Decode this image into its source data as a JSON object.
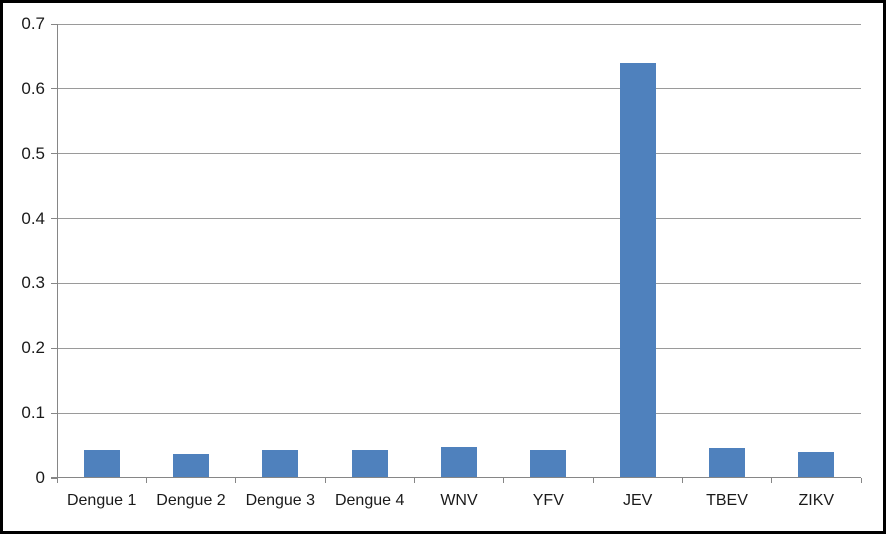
{
  "chart_data": {
    "type": "bar",
    "title": "",
    "categories": [
      "Dengue 1",
      "Dengue 2",
      "Dengue 3",
      "Dengue 4",
      "WNV",
      "YFV",
      "JEV",
      "TBEV",
      "ZIKV"
    ],
    "values": [
      0.042,
      0.036,
      0.042,
      0.042,
      0.046,
      0.041,
      0.638,
      0.045,
      0.038
    ],
    "xlabel": "",
    "ylabel": "",
    "ylim": [
      0,
      0.7
    ],
    "ytick_interval": 0.1,
    "ytick_labels": [
      "0",
      "0.1",
      "0.2",
      "0.3",
      "0.4",
      "0.5",
      "0.6",
      "0.7"
    ],
    "grid": "horizontal",
    "legend_position": "none",
    "bar_gap_ratio": 1.5
  },
  "colors": {
    "bar_fill": "#4F81BD",
    "gridline": "#9a9a9a",
    "axis": "#868686",
    "frame_border": "#000000",
    "background": "#ffffff",
    "tick_text": "#1a1a1a"
  }
}
